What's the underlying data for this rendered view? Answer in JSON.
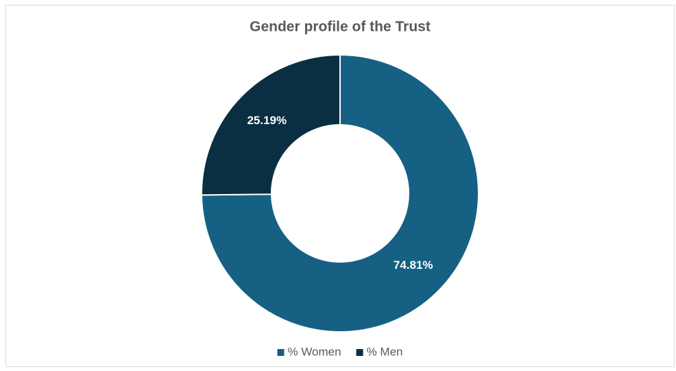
{
  "chart_data": {
    "type": "donut",
    "title": "Gender profile of the Trust",
    "categories": [
      "% Women",
      "% Men"
    ],
    "values": [
      74.81,
      25.19
    ],
    "value_labels": [
      "74.81%",
      "25.19%"
    ],
    "colors": [
      "#166083",
      "#0b2f42"
    ],
    "legend": "bottom"
  }
}
